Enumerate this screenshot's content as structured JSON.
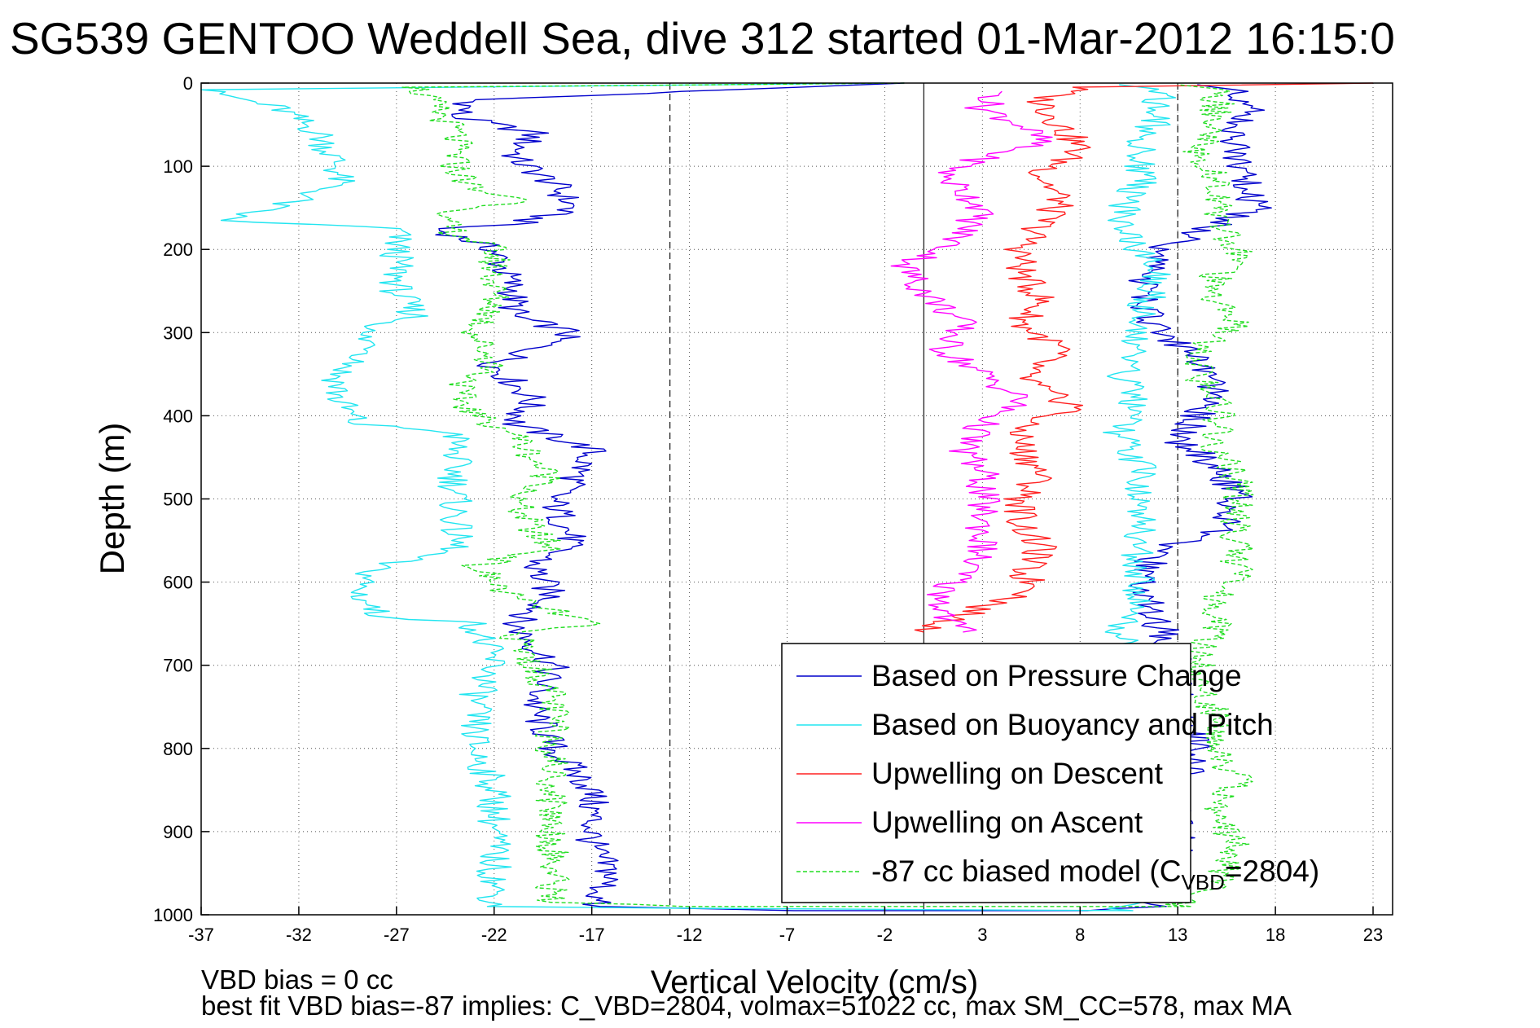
{
  "title": "SG539 GENTOO Weddell Sea, dive 312 started 01-Mar-2012 16:15:0",
  "footer": {
    "line1": "VBD bias = 0 cc",
    "line2": "best fit VBD bias=-87 implies: C_VBD=2804, volmax=51022 cc, max SM_CC=578, max MA"
  },
  "chart_data": {
    "type": "line",
    "xlabel": "Vertical Velocity (cm/s)",
    "ylabel": "Depth (m)",
    "xlim": [
      -37,
      24
    ],
    "ylim": [
      0,
      1000
    ],
    "y_reversed": true,
    "xticks": [
      -37,
      -32,
      -27,
      -22,
      -17,
      -12,
      -7,
      -2,
      3,
      8,
      13,
      18,
      23
    ],
    "yticks": [
      0,
      100,
      200,
      300,
      400,
      500,
      600,
      700,
      800,
      900,
      1000
    ],
    "grid": true,
    "vertical_reference_lines": [
      {
        "x": -13,
        "style": "dashed"
      },
      {
        "x": 0,
        "style": "solid"
      },
      {
        "x": 13,
        "style": "dashed"
      }
    ],
    "legend": {
      "position": "bottom-right",
      "entries": [
        {
          "label": "Based on Pressure Change",
          "color": "#0000cc",
          "style": "solid"
        },
        {
          "label": "Based on Buoyancy and Pitch",
          "color": "#22e5f0",
          "style": "solid"
        },
        {
          "label": "Upwelling on Descent",
          "color": "#ff2020",
          "style": "solid"
        },
        {
          "label": "Upwelling on Ascent",
          "color": "#ff00ff",
          "style": "solid"
        },
        {
          "label_prefix": "-87 cc biased model (C",
          "label_sub": "VBD",
          "label_suffix": "=2804)",
          "color": "#22dd22",
          "style": "dashed"
        }
      ]
    },
    "series": [
      {
        "name": "Based on Pressure Change",
        "color": "#0000cc",
        "points": [
          [
            -1,
            0
          ],
          [
            -23,
            20
          ],
          [
            -24,
            40
          ],
          [
            -20,
            60
          ],
          [
            -21,
            90
          ],
          [
            -19,
            120
          ],
          [
            -18,
            150
          ],
          [
            -21,
            170
          ],
          [
            -25,
            175
          ],
          [
            -22,
            200
          ],
          [
            -21,
            250
          ],
          [
            -21,
            280
          ],
          [
            -18,
            300
          ],
          [
            -22,
            340
          ],
          [
            -20,
            380
          ],
          [
            -21,
            410
          ],
          [
            -17,
            440
          ],
          [
            -18,
            480
          ],
          [
            -19,
            500
          ],
          [
            -18,
            550
          ],
          [
            -20,
            580
          ],
          [
            -19,
            620
          ],
          [
            -21,
            650
          ],
          [
            -19,
            700
          ],
          [
            -20,
            750
          ],
          [
            -19,
            800
          ],
          [
            -17,
            850
          ],
          [
            -17,
            880
          ],
          [
            -17,
            920
          ],
          [
            -16,
            950
          ],
          [
            -17,
            990
          ],
          [
            -7,
            995
          ],
          [
            8,
            995
          ],
          [
            12,
            990
          ],
          [
            12,
            950
          ],
          [
            13,
            920
          ],
          [
            13,
            880
          ],
          [
            13,
            850
          ],
          [
            14,
            800
          ],
          [
            13,
            750
          ],
          [
            13,
            700
          ],
          [
            12,
            650
          ],
          [
            11,
            600
          ],
          [
            12,
            560
          ],
          [
            15,
            540
          ],
          [
            16,
            500
          ],
          [
            15,
            460
          ],
          [
            13,
            430
          ],
          [
            14,
            400
          ],
          [
            15,
            370
          ],
          [
            14,
            330
          ],
          [
            12,
            300
          ],
          [
            11,
            250
          ],
          [
            12,
            200
          ],
          [
            15,
            170
          ],
          [
            17,
            150
          ],
          [
            16,
            100
          ],
          [
            16,
            60
          ],
          [
            17,
            30
          ],
          [
            16,
            10
          ],
          [
            14,
            2
          ]
        ]
      },
      {
        "name": "Based on Buoyancy and Pitch",
        "color": "#22e5f0",
        "points": [
          [
            -2,
            0
          ],
          [
            -37,
            8
          ],
          [
            -33,
            30
          ],
          [
            -31,
            60
          ],
          [
            -30,
            100
          ],
          [
            -30,
            120
          ],
          [
            -32,
            140
          ],
          [
            -36,
            165
          ],
          [
            -27,
            175
          ],
          [
            -27,
            200
          ],
          [
            -27,
            250
          ],
          [
            -26,
            280
          ],
          [
            -29,
            300
          ],
          [
            -28,
            320
          ],
          [
            -30,
            350
          ],
          [
            -30,
            380
          ],
          [
            -29,
            410
          ],
          [
            -24,
            420
          ],
          [
            -24,
            450
          ],
          [
            -24,
            490
          ],
          [
            -24,
            520
          ],
          [
            -24,
            560
          ],
          [
            -28,
            580
          ],
          [
            -29,
            610
          ],
          [
            -28,
            640
          ],
          [
            -23,
            650
          ],
          [
            -22,
            700
          ],
          [
            -23,
            740
          ],
          [
            -23,
            800
          ],
          [
            -22,
            850
          ],
          [
            -22,
            900
          ],
          [
            -22,
            950
          ],
          [
            -22,
            990
          ],
          [
            -13,
            992
          ],
          [
            10,
            995
          ],
          [
            12,
            960
          ],
          [
            11,
            920
          ],
          [
            11,
            880
          ],
          [
            11,
            840
          ],
          [
            11,
            800
          ],
          [
            11,
            760
          ],
          [
            11,
            720
          ],
          [
            11,
            690
          ],
          [
            10,
            660
          ],
          [
            11,
            620
          ],
          [
            11,
            580
          ],
          [
            11,
            540
          ],
          [
            11,
            500
          ],
          [
            11,
            460
          ],
          [
            10,
            420
          ],
          [
            11,
            380
          ],
          [
            10,
            350
          ],
          [
            11,
            320
          ],
          [
            11,
            280
          ],
          [
            12,
            240
          ],
          [
            11,
            200
          ],
          [
            10,
            160
          ],
          [
            11,
            120
          ],
          [
            11,
            80
          ],
          [
            12,
            40
          ],
          [
            12,
            10
          ],
          [
            10,
            2
          ]
        ]
      },
      {
        "name": "Upwelling on Descent",
        "color": "#ff2020",
        "points": [
          [
            23,
            0
          ],
          [
            8,
            5
          ],
          [
            6,
            20
          ],
          [
            7,
            50
          ],
          [
            8,
            80
          ],
          [
            6,
            110
          ],
          [
            7,
            140
          ],
          [
            6,
            170
          ],
          [
            5,
            200
          ],
          [
            5,
            230
          ],
          [
            6,
            260
          ],
          [
            5,
            290
          ],
          [
            7,
            320
          ],
          [
            5,
            350
          ],
          [
            6,
            370
          ],
          [
            8,
            390
          ],
          [
            5,
            410
          ],
          [
            5,
            440
          ],
          [
            6,
            470
          ],
          [
            5,
            500
          ],
          [
            5,
            530
          ],
          [
            6,
            560
          ],
          [
            5,
            590
          ],
          [
            6,
            610
          ],
          [
            3,
            630
          ],
          [
            1,
            650
          ],
          [
            0,
            660
          ]
        ]
      },
      {
        "name": "Upwelling on Ascent",
        "color": "#ff00ff",
        "points": [
          [
            4,
            10
          ],
          [
            3,
            30
          ],
          [
            5,
            50
          ],
          [
            6,
            70
          ],
          [
            3,
            90
          ],
          [
            1,
            110
          ],
          [
            2,
            130
          ],
          [
            3,
            150
          ],
          [
            2,
            180
          ],
          [
            1,
            200
          ],
          [
            -1,
            220
          ],
          [
            0,
            250
          ],
          [
            1,
            270
          ],
          [
            2,
            290
          ],
          [
            1,
            320
          ],
          [
            3,
            350
          ],
          [
            5,
            380
          ],
          [
            3,
            410
          ],
          [
            2,
            440
          ],
          [
            3,
            470
          ],
          [
            3,
            500
          ],
          [
            3,
            530
          ],
          [
            3,
            560
          ],
          [
            2,
            590
          ],
          [
            1,
            610
          ],
          [
            1,
            640
          ],
          [
            2,
            660
          ]
        ]
      },
      {
        "name": "-87 cc biased model (C_VBD=2804)",
        "color": "#22dd22",
        "dashed": true,
        "points": [
          [
            -1,
            0
          ],
          [
            -26,
            5
          ],
          [
            -25,
            30
          ],
          [
            -24,
            60
          ],
          [
            -24,
            100
          ],
          [
            -23,
            130
          ],
          [
            -20,
            140
          ],
          [
            -25,
            160
          ],
          [
            -24,
            180
          ],
          [
            -22,
            200
          ],
          [
            -22,
            240
          ],
          [
            -22,
            270
          ],
          [
            -23,
            300
          ],
          [
            -22,
            340
          ],
          [
            -24,
            370
          ],
          [
            -23,
            400
          ],
          [
            -21,
            420
          ],
          [
            -20,
            450
          ],
          [
            -19,
            480
          ],
          [
            -21,
            500
          ],
          [
            -20,
            540
          ],
          [
            -19,
            560
          ],
          [
            -23,
            580
          ],
          [
            -21,
            620
          ],
          [
            -17,
            650
          ],
          [
            -21,
            660
          ],
          [
            -20,
            700
          ],
          [
            -19,
            740
          ],
          [
            -19,
            800
          ],
          [
            -19,
            850
          ],
          [
            -19,
            900
          ],
          [
            -19,
            940
          ],
          [
            -19,
            985
          ],
          [
            -12,
            990
          ],
          [
            13,
            990
          ],
          [
            15,
            960
          ],
          [
            16,
            920
          ],
          [
            15,
            880
          ],
          [
            16,
            840
          ],
          [
            15,
            800
          ],
          [
            15,
            760
          ],
          [
            14,
            720
          ],
          [
            14,
            690
          ],
          [
            15,
            650
          ],
          [
            15,
            620
          ],
          [
            16,
            590
          ],
          [
            16,
            550
          ],
          [
            16,
            510
          ],
          [
            16,
            480
          ],
          [
            15,
            440
          ],
          [
            15,
            410
          ],
          [
            15,
            380
          ],
          [
            14,
            350
          ],
          [
            14,
            320
          ],
          [
            16,
            290
          ],
          [
            15,
            260
          ],
          [
            15,
            230
          ],
          [
            16,
            200
          ],
          [
            15,
            160
          ],
          [
            15,
            120
          ],
          [
            14,
            80
          ],
          [
            15,
            40
          ],
          [
            15,
            10
          ],
          [
            13,
            2
          ]
        ]
      }
    ]
  }
}
